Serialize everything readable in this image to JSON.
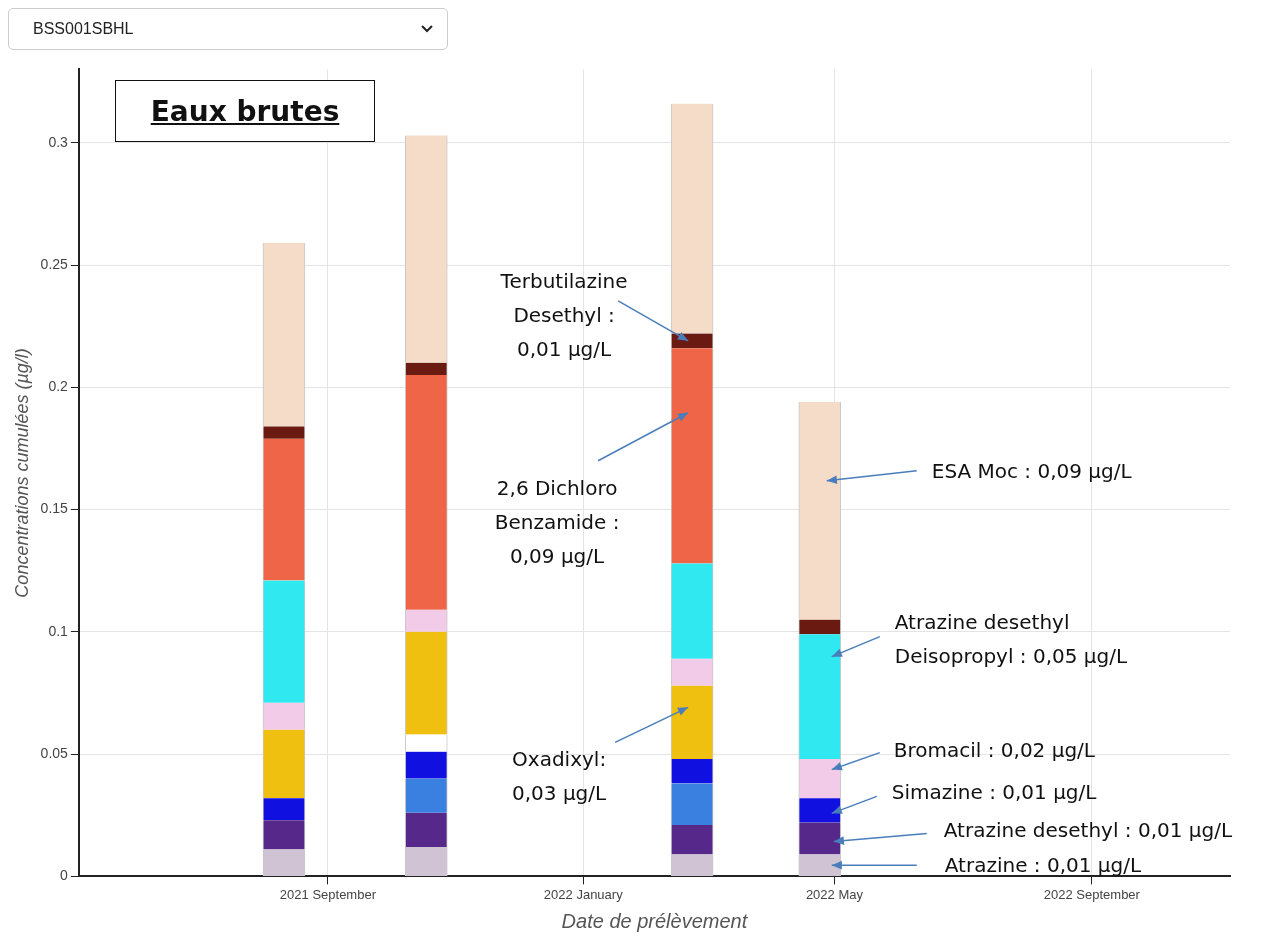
{
  "chart_data": {
    "type": "bar",
    "title": "Eaux brutes",
    "subtitle": "BSS001SBHL",
    "xlabel": "Date de prélèvement",
    "ylabel": "Concentrations cumulées (µg/l)",
    "x": [
      "2021-08-11",
      "2021-10-18",
      "2022-02-22",
      "2022-04-24"
    ],
    "xlim": [
      "2021-05-05",
      "2022-11-06"
    ],
    "xticks": [
      {
        "value": "2021-09-01",
        "label": "2021 September"
      },
      {
        "value": "2022-01-01",
        "label": "2022 January"
      },
      {
        "value": "2022-05-01",
        "label": "2022 May"
      },
      {
        "value": "2022-09-01",
        "label": "2022 September"
      }
    ],
    "ylim": [
      0,
      0.33
    ],
    "yticks": [
      0,
      0.05,
      0.1,
      0.15,
      0.2,
      0.25,
      0.3
    ],
    "stacked": true,
    "grid": true,
    "legend": false,
    "series": [
      {
        "color": "#d0c4d4",
        "values": [
          0.011,
          0.012,
          0.009,
          0.009
        ]
      },
      {
        "color": "#55288a",
        "values": [
          0.012,
          0.014,
          0.012,
          0.013
        ]
      },
      {
        "color": "#3a80e0",
        "values": [
          null,
          0.014,
          0.017,
          null
        ]
      },
      {
        "color": "#1010e0",
        "values": [
          0.009,
          0.011,
          0.01,
          0.01
        ]
      },
      {
        "color": "#ffffff",
        "values": [
          null,
          0.007,
          null,
          null
        ]
      },
      {
        "color": "#f0c010",
        "values": [
          0.028,
          0.042,
          0.03,
          null
        ]
      },
      {
        "color": "#f2cbe8",
        "values": [
          0.011,
          0.009,
          0.011,
          0.016
        ]
      },
      {
        "color": "#30e8f0",
        "values": [
          0.05,
          null,
          0.039,
          0.051
        ]
      },
      {
        "color": "#ee6548",
        "values": [
          0.058,
          0.096,
          0.088,
          null
        ]
      },
      {
        "color": "#6a1a10",
        "values": [
          0.005,
          0.005,
          0.006,
          0.006
        ]
      },
      {
        "color": "#f5dcc8",
        "values": [
          0.075,
          0.093,
          0.094,
          0.089
        ]
      }
    ],
    "annotations": [
      "Terbutilazine\nDesethyl :\n0,01 µg/L",
      "2,6 Dichloro\nBenzamide :\n0,09 µg/L",
      "Oxadixyl:\n0,03 µg/L",
      "ESA Moc : 0,09 µg/L",
      "Atrazine desethyl\nDeisopropyl : 0,05 µg/L",
      "Bromacil : 0,02 µg/L",
      "Simazine : 0,01 µg/L",
      "Atrazine desethyl : 0,01 µg/L",
      "Atrazine : 0,01 µg/L"
    ]
  }
}
